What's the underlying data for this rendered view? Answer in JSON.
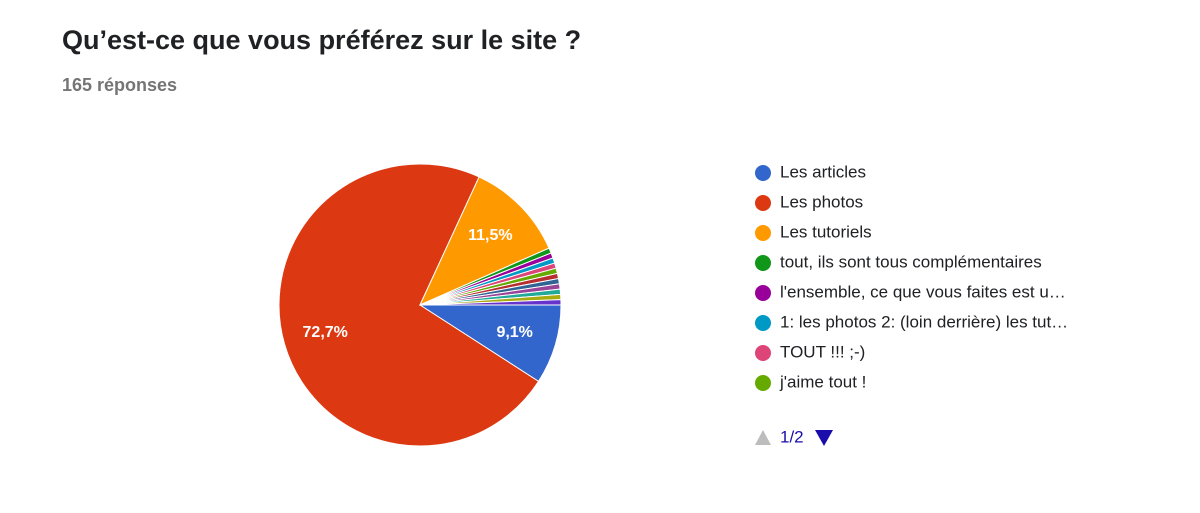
{
  "chart_data": {
    "type": "pie",
    "title": "Qu’est-ce que vous préférez sur le site ?",
    "subtitle": "165 réponses",
    "categories": [
      "Les articles",
      "Les photos",
      "Les tutoriels",
      "tout, ils sont tous complémentaires",
      "l'ensemble, ce que vous faites est u…",
      "1: les photos 2: (loin derrière) les tut…",
      "TOUT !!! ;-)",
      "j'aime tout !",
      null,
      null,
      null,
      null,
      null,
      null
    ],
    "values": [
      9.1,
      72.7,
      11.5,
      0.6,
      0.6,
      0.6,
      0.6,
      0.6,
      0.6,
      0.6,
      0.6,
      0.6,
      0.6,
      0.6
    ],
    "value_labels": [
      "9,1%",
      "72,7%",
      "11,5%",
      null,
      null,
      null,
      null,
      null,
      null,
      null,
      null,
      null,
      null,
      null
    ],
    "colors": [
      "#3366cc",
      "#dc3912",
      "#ff9900",
      "#109618",
      "#990099",
      "#0099c6",
      "#dd4477",
      "#66aa00",
      "#b82e2e",
      "#316395",
      "#994499",
      "#22aa99",
      "#aaaa11",
      "#6633cc"
    ],
    "legend": "right",
    "pagination": "1/2"
  }
}
